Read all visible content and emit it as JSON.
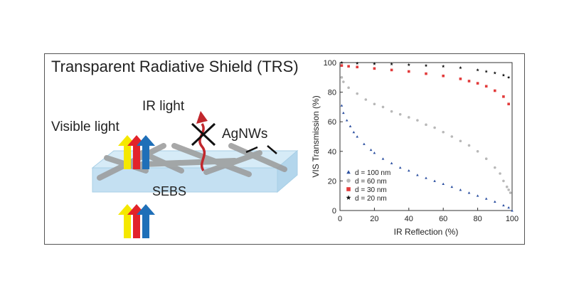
{
  "diagram": {
    "title": "Transparent Radiative Shield (TRS)",
    "labels": {
      "ir_light": "IR light",
      "visible_light": "Visible light",
      "agnws": "AgNWs",
      "sebs": "SEBS"
    },
    "arrow_colors": [
      "#f5e800",
      "#e2232a",
      "#1f6fb8"
    ],
    "ir_arrow_color": "#c1272d",
    "wire_color": "#9a9a9a",
    "substrate_color": "#cfe6f4"
  },
  "chart_data": {
    "type": "scatter",
    "xlabel": "IR Reflection (%)",
    "ylabel": "VIS Transmission (%)",
    "xlim": [
      0,
      100
    ],
    "ylim": [
      0,
      100
    ],
    "xticks": [
      0,
      20,
      40,
      60,
      80,
      100
    ],
    "yticks": [
      0,
      20,
      40,
      60,
      80,
      100
    ],
    "grid": false,
    "legend_position": "bottom-left",
    "series": [
      {
        "name": "d = 100 nm",
        "marker": "triangle",
        "color": "#2b4fa0",
        "points": [
          [
            1,
            71
          ],
          [
            2,
            66
          ],
          [
            4,
            61
          ],
          [
            6,
            57
          ],
          [
            8,
            53
          ],
          [
            10,
            50
          ],
          [
            14,
            45
          ],
          [
            18,
            41
          ],
          [
            20,
            39
          ],
          [
            25,
            35
          ],
          [
            30,
            32
          ],
          [
            35,
            29
          ],
          [
            40,
            27
          ],
          [
            45,
            24
          ],
          [
            50,
            22
          ],
          [
            55,
            20
          ],
          [
            60,
            18
          ],
          [
            65,
            16
          ],
          [
            70,
            14
          ],
          [
            75,
            12
          ],
          [
            80,
            10
          ],
          [
            85,
            8
          ],
          [
            90,
            6
          ],
          [
            95,
            3.5
          ],
          [
            98,
            2
          ],
          [
            100,
            0
          ]
        ]
      },
      {
        "name": "d = 60 nm",
        "marker": "circle",
        "color": "#b8b8b8",
        "points": [
          [
            1,
            90
          ],
          [
            2,
            87
          ],
          [
            5,
            83
          ],
          [
            10,
            79
          ],
          [
            15,
            75
          ],
          [
            20,
            72
          ],
          [
            25,
            70
          ],
          [
            30,
            67
          ],
          [
            35,
            65
          ],
          [
            40,
            63
          ],
          [
            45,
            61
          ],
          [
            50,
            58
          ],
          [
            55,
            56
          ],
          [
            60,
            53
          ],
          [
            65,
            50
          ],
          [
            70,
            47
          ],
          [
            75,
            44
          ],
          [
            80,
            40
          ],
          [
            85,
            35
          ],
          [
            90,
            29
          ],
          [
            93,
            25
          ],
          [
            95,
            20
          ],
          [
            97,
            16
          ],
          [
            98,
            14
          ],
          [
            99,
            12
          ]
        ]
      },
      {
        "name": "d = 30 nm",
        "marker": "square",
        "color": "#e23b3b",
        "points": [
          [
            1,
            98
          ],
          [
            5,
            97.5
          ],
          [
            10,
            97
          ],
          [
            20,
            96
          ],
          [
            30,
            95
          ],
          [
            40,
            94
          ],
          [
            50,
            92.5
          ],
          [
            60,
            91
          ],
          [
            70,
            89
          ],
          [
            75,
            87.5
          ],
          [
            80,
            86
          ],
          [
            85,
            84
          ],
          [
            90,
            81
          ],
          [
            95,
            77
          ],
          [
            98,
            72
          ]
        ]
      },
      {
        "name": "d = 20 nm",
        "marker": "star",
        "color": "#111111",
        "points": [
          [
            1,
            100
          ],
          [
            10,
            99.5
          ],
          [
            20,
            99.2
          ],
          [
            30,
            99
          ],
          [
            40,
            98.5
          ],
          [
            50,
            98
          ],
          [
            60,
            97.5
          ],
          [
            70,
            96.5
          ],
          [
            80,
            95
          ],
          [
            85,
            94
          ],
          [
            90,
            93
          ],
          [
            95,
            91.5
          ],
          [
            98,
            90
          ]
        ]
      }
    ]
  }
}
